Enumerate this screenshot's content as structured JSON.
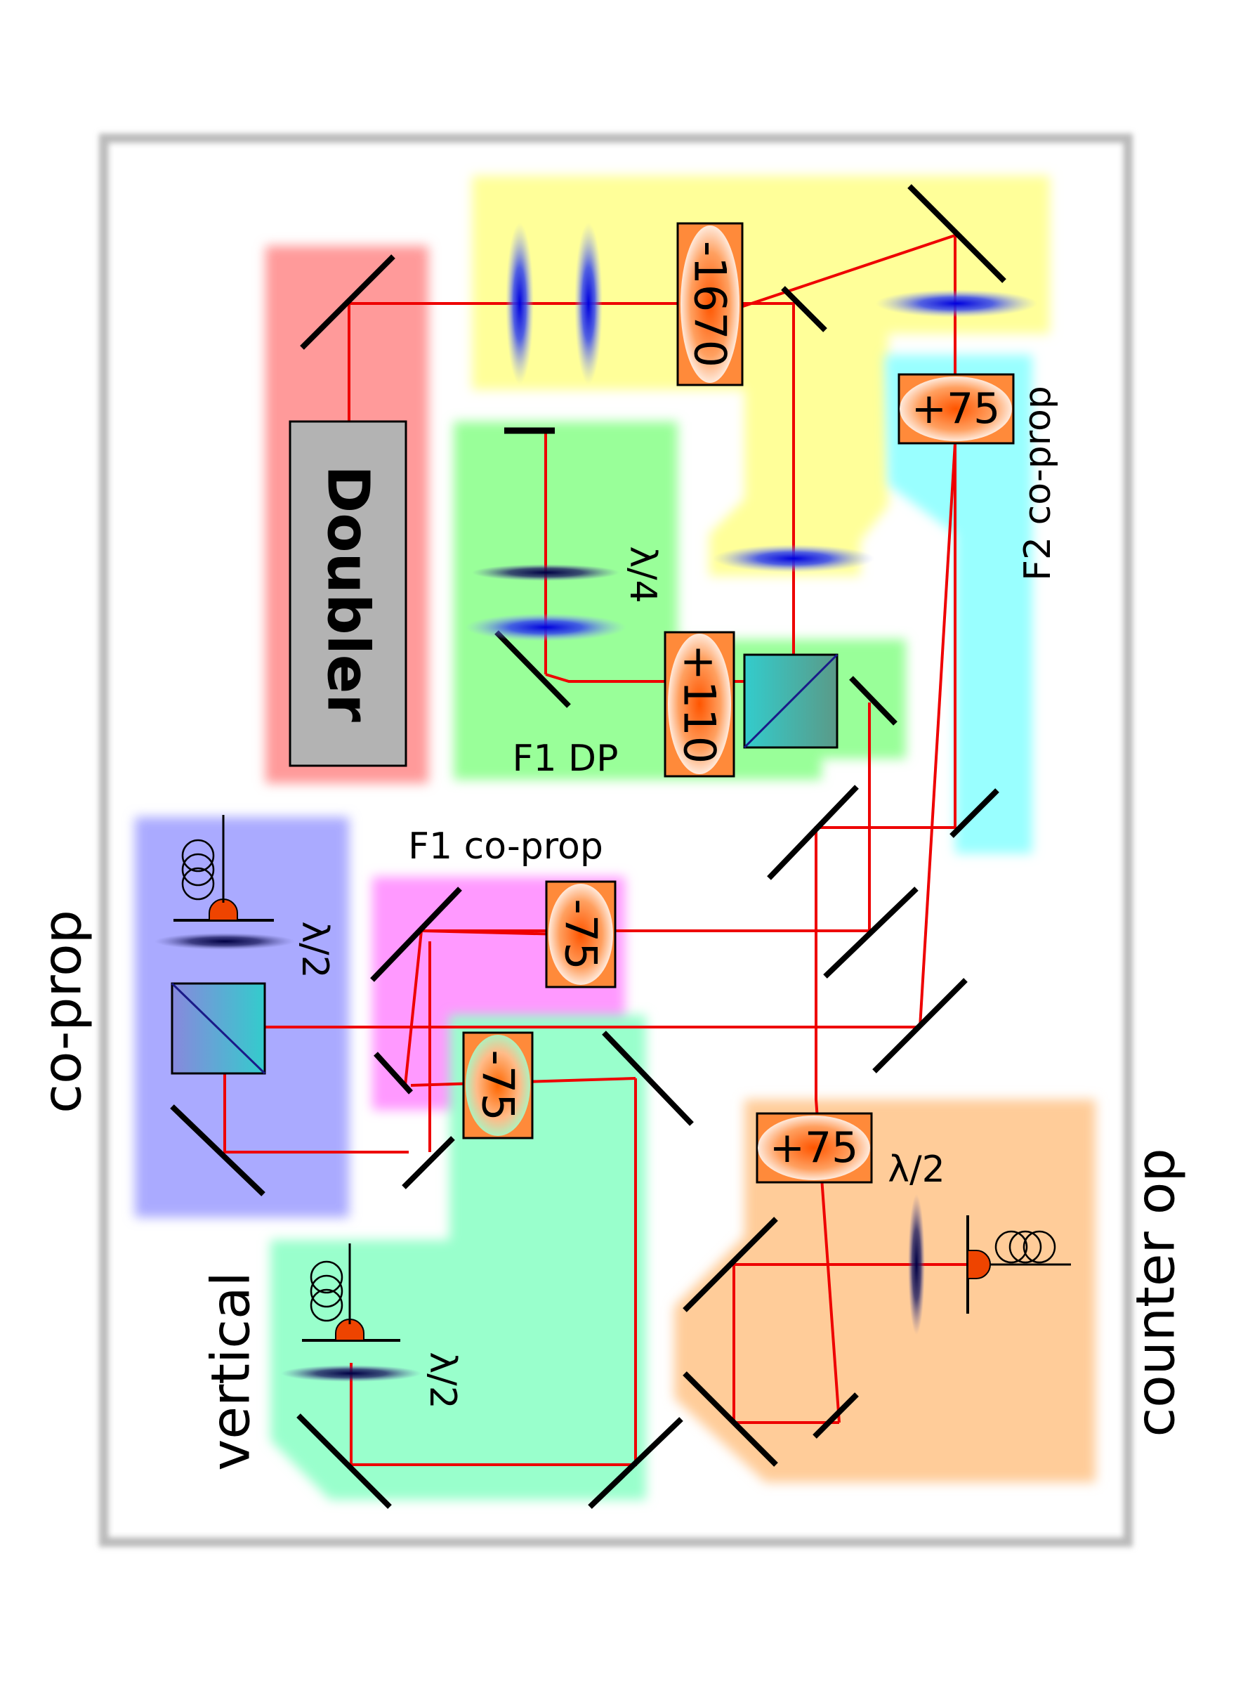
{
  "colors": {
    "beam": "#ee0000",
    "doubler_region": "#ff9a9a",
    "yellow_region": "#ffff99",
    "f1dp_region": "#99ff99",
    "f2_region": "#99ffff",
    "f1coprop_region": "#ff99ff",
    "coprop_region": "#aaaaff",
    "vertical_region": "#99ffcc",
    "counterop_region": "#ffcc99"
  },
  "labels": {
    "doubler": "Doubler",
    "coprop": "co-prop",
    "vertical": "vertical",
    "counter_op": "counter op",
    "f1_coprop": "F1 co-prop",
    "f1_dp": "F1 DP",
    "f2_coprop": "F2 co-prop",
    "lambda_4": "λ/4",
    "lambda_2_coprop": "λ/2",
    "lambda_2_vertical": "λ/2",
    "lambda_2_counter": "λ/2"
  },
  "aoms": {
    "aom_1670": "-1670",
    "aom_110": "+110",
    "aom_75_f2": "+75",
    "aom_75_f1": "-75",
    "aom_75_vertical": "-75",
    "aom_75_counter": "+75"
  },
  "icons": [
    "mirror-icon",
    "lens-icon",
    "aom-icon",
    "beam-splitter-icon",
    "fiber-coupler-icon",
    "fiber-coil-icon",
    "beam-block-icon"
  ]
}
